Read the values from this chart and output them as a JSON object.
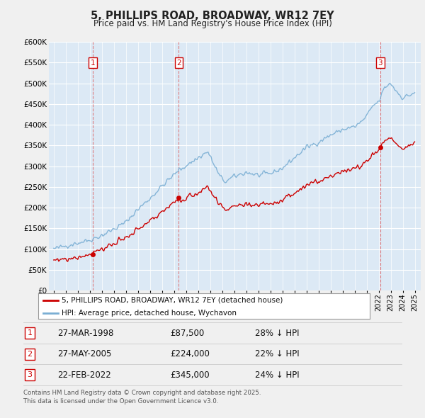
{
  "title": "5, PHILLIPS ROAD, BROADWAY, WR12 7EY",
  "subtitle": "Price paid vs. HM Land Registry's House Price Index (HPI)",
  "hpi_color": "#7bafd4",
  "sale_color": "#cc0000",
  "ylim": [
    0,
    600000
  ],
  "yticks": [
    0,
    50000,
    100000,
    150000,
    200000,
    250000,
    300000,
    350000,
    400000,
    450000,
    500000,
    550000,
    600000
  ],
  "ytick_labels": [
    "£0",
    "£50K",
    "£100K",
    "£150K",
    "£200K",
    "£250K",
    "£300K",
    "£350K",
    "£400K",
    "£450K",
    "£500K",
    "£550K",
    "£600K"
  ],
  "sale_dates_num": [
    1998.23,
    2005.4,
    2022.14
  ],
  "sale_prices": [
    87500,
    224000,
    345000
  ],
  "sale_labels": [
    "1",
    "2",
    "3"
  ],
  "sale_vline_dates": [
    1998.23,
    2005.4,
    2022.14
  ],
  "legend_entries": [
    "5, PHILLIPS ROAD, BROADWAY, WR12 7EY (detached house)",
    "HPI: Average price, detached house, Wychavon"
  ],
  "table_rows": [
    [
      "1",
      "27-MAR-1998",
      "£87,500",
      "28% ↓ HPI"
    ],
    [
      "2",
      "27-MAY-2005",
      "£224,000",
      "22% ↓ HPI"
    ],
    [
      "3",
      "22-FEB-2022",
      "£345,000",
      "24% ↓ HPI"
    ]
  ],
  "footer": "Contains HM Land Registry data © Crown copyright and database right 2025.\nThis data is licensed under the Open Government Licence v3.0.",
  "bg_color": "#f0f0f0",
  "plot_bg_color": "#dce9f5",
  "grid_color": "#ffffff",
  "xmin": 1994.6,
  "xmax": 2025.5
}
